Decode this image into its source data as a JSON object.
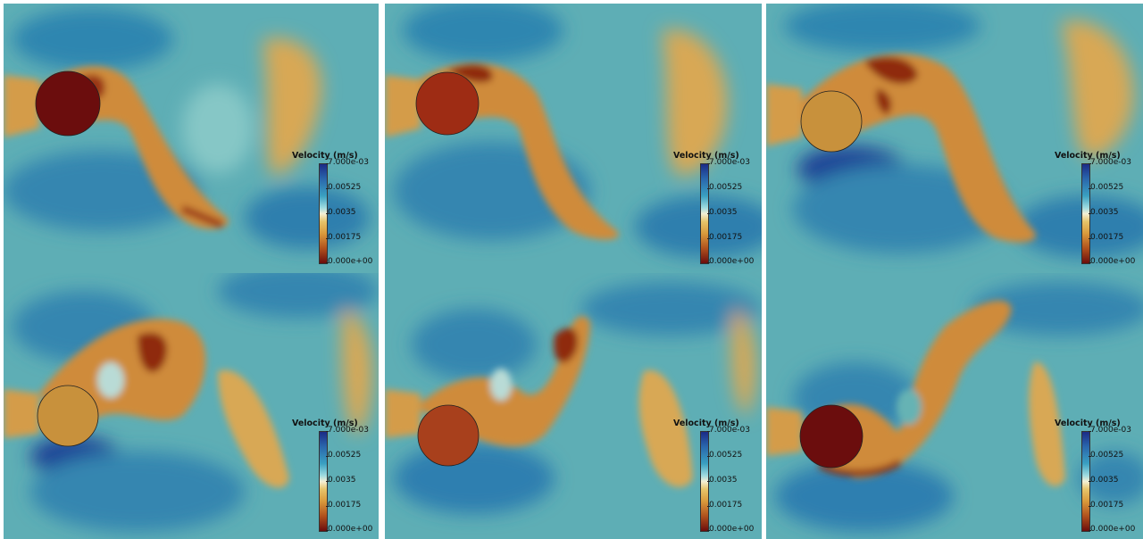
{
  "colors": {
    "background": "#66b4b6",
    "low": "#6b0d0d",
    "mid_low": "#d6a04a",
    "mid": "#f4f0d6",
    "mid_high": "#3aa0c1",
    "high": "#1b2b86"
  },
  "legend": {
    "title": "Velocity (m/s)",
    "ticks": [
      "7.000e-03",
      "0.00525",
      "0.0035",
      "0.00175",
      "0.000e+00"
    ]
  },
  "panels": [
    {
      "cylinder_color": "#6b0d0d"
    },
    {
      "cylinder_color": "#9e2c14"
    },
    {
      "cylinder_color": "#c8913c"
    },
    {
      "cylinder_color": "#c8913c"
    },
    {
      "cylinder_color": "#a8401c"
    },
    {
      "cylinder_color": "#6b0d0d"
    }
  ]
}
